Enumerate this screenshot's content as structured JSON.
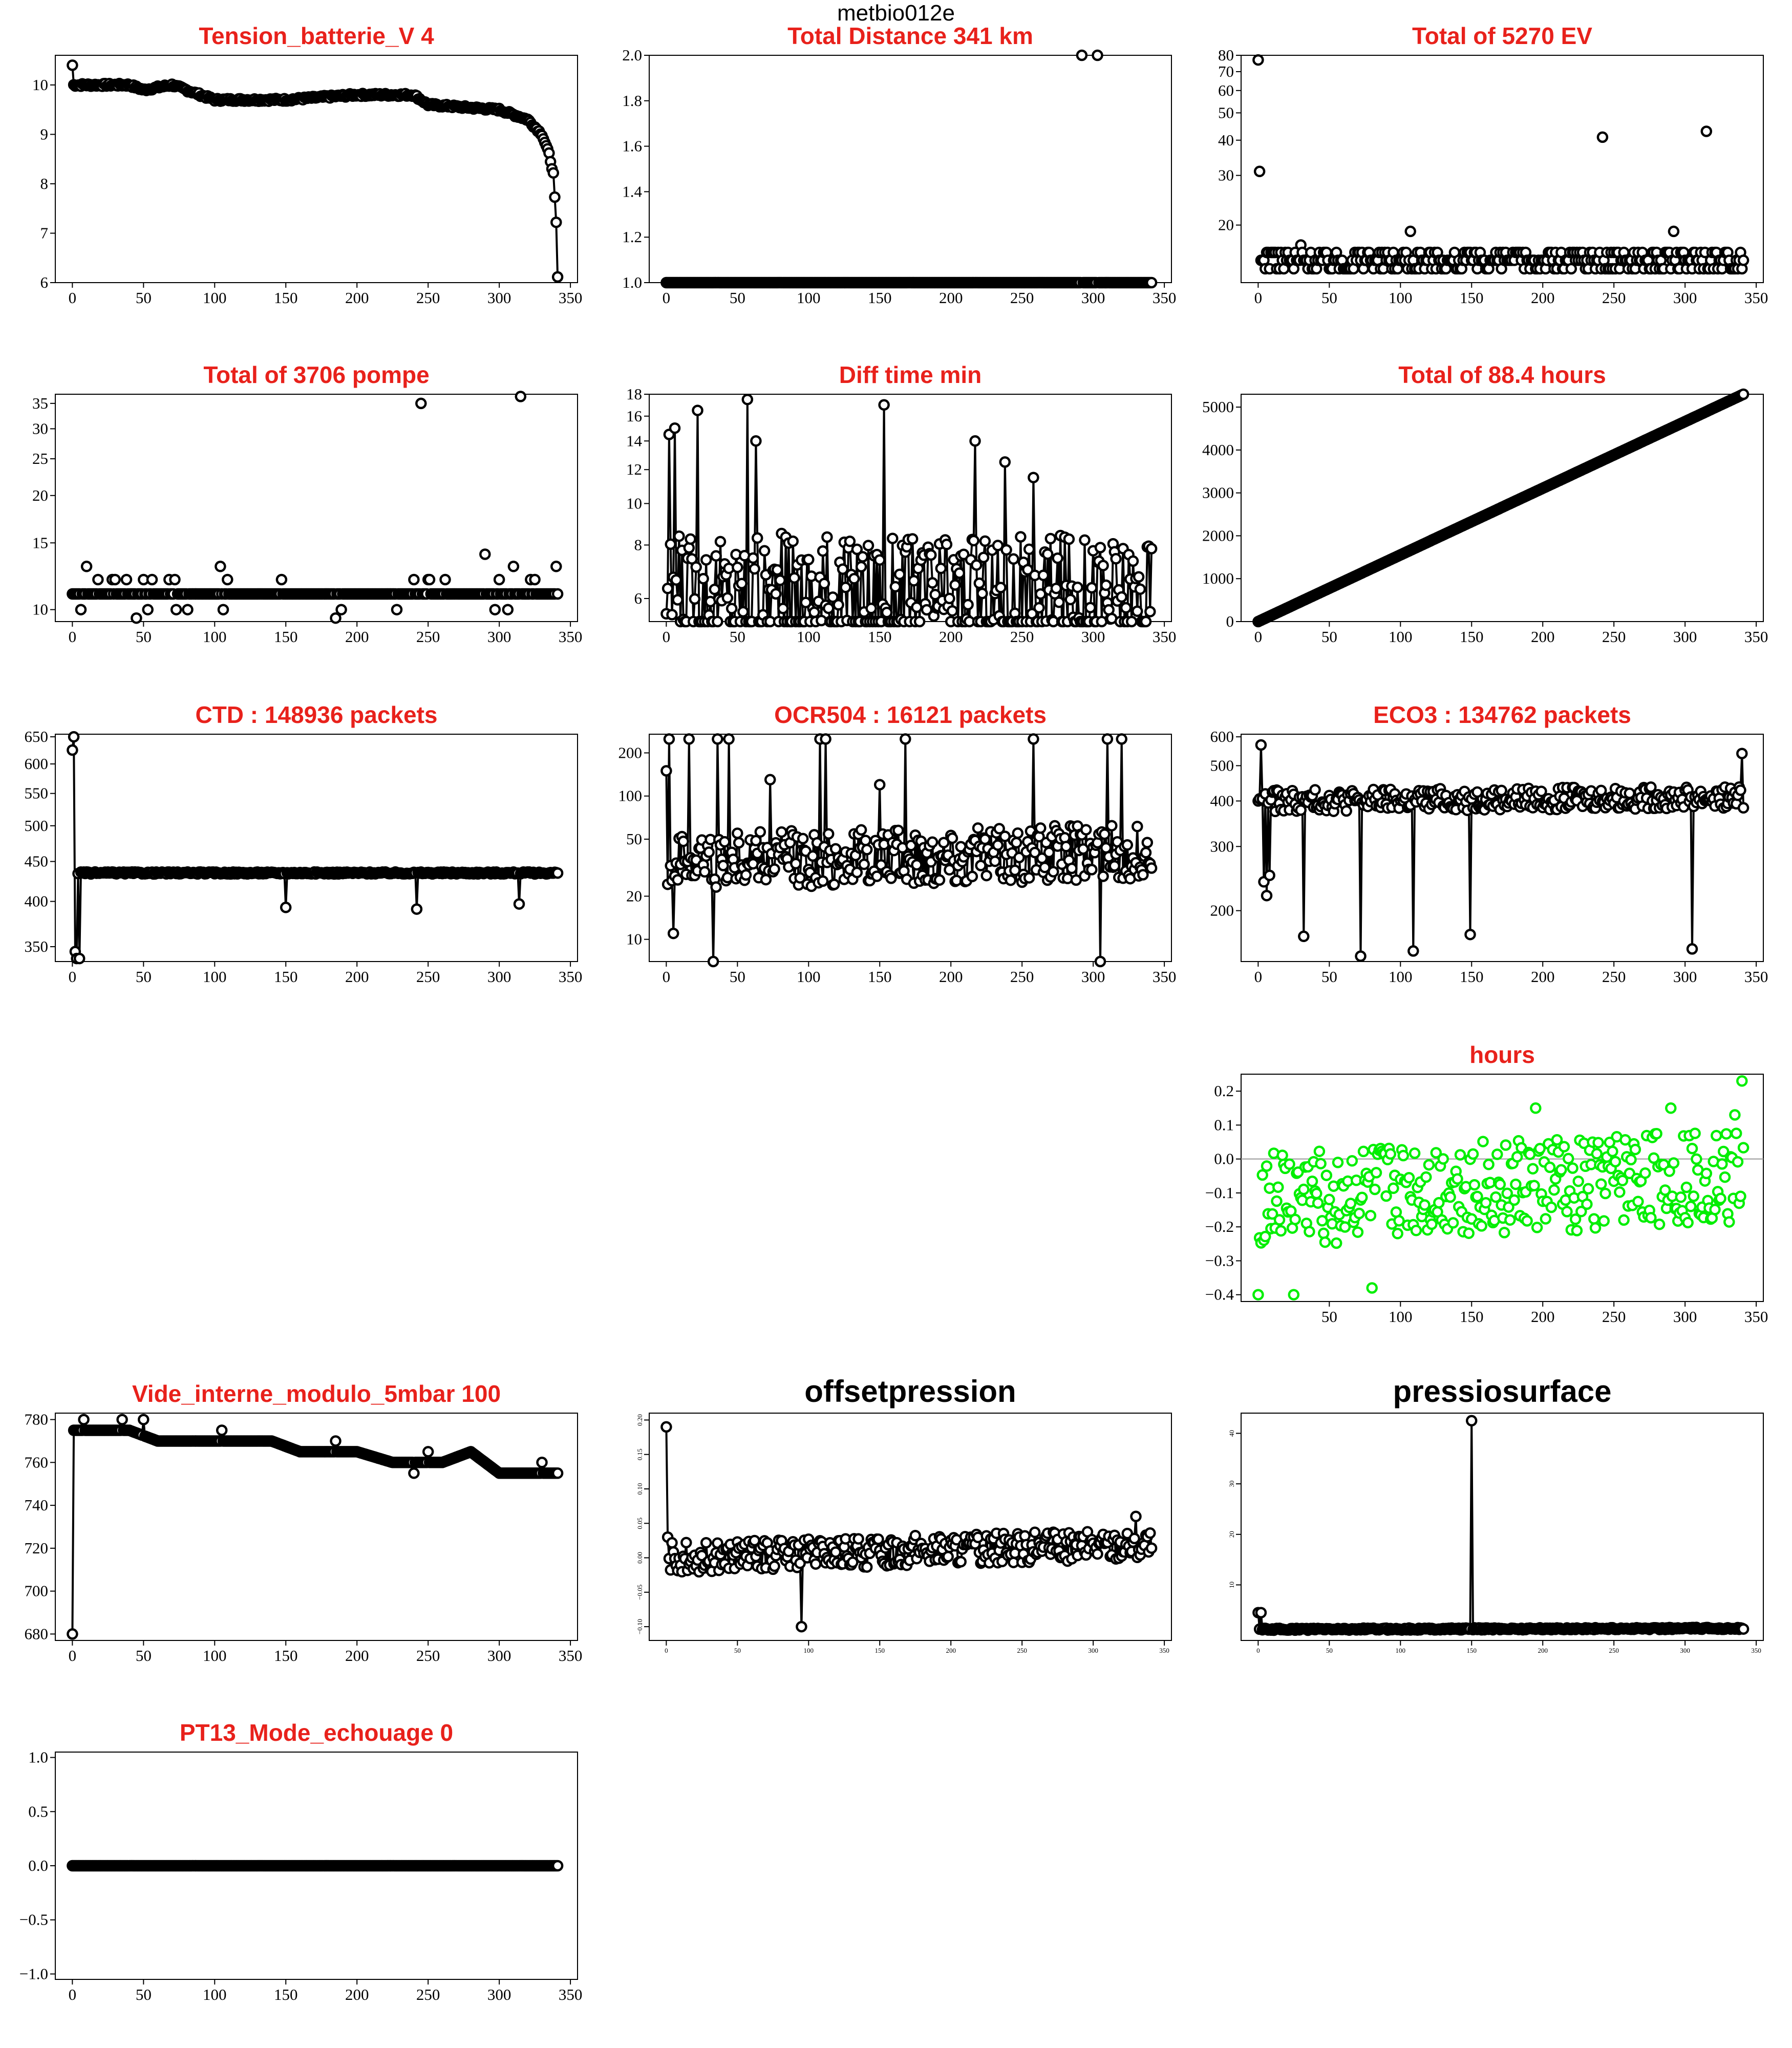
{
  "figure_title": "metbio012e",
  "colors": {
    "title": "#e8211b",
    "title_black": "#000000",
    "points": "#000000",
    "green": "#00ee00",
    "zero_line": "#999999"
  },
  "chart_data": [
    {
      "id": "tension",
      "type": "line",
      "title": "Tension_batterie_V 4",
      "title_color": "#e8211b",
      "xlim": [
        -12,
        355
      ],
      "ylim": [
        6,
        10.6
      ],
      "xticks": [
        0,
        50,
        100,
        150,
        200,
        250,
        300,
        350
      ],
      "yticks": [
        6,
        7,
        8,
        9,
        10
      ],
      "markers": true,
      "line": true,
      "approx_points": 341,
      "profile": [
        [
          0,
          10.4
        ],
        [
          1,
          10
        ],
        [
          40,
          10
        ],
        [
          50,
          9.9
        ],
        [
          70,
          10
        ],
        [
          80,
          9.9
        ],
        [
          100,
          9.7
        ],
        [
          150,
          9.7
        ],
        [
          200,
          9.8
        ],
        [
          240,
          9.8
        ],
        [
          250,
          9.6
        ],
        [
          300,
          9.5
        ],
        [
          320,
          9.3
        ],
        [
          330,
          9.0
        ],
        [
          335,
          8.6
        ],
        [
          338,
          8.2
        ],
        [
          340,
          7.2
        ],
        [
          341,
          6.1
        ]
      ]
    },
    {
      "id": "distance",
      "type": "line",
      "title": "Total Distance  341  km",
      "title_color": "#e8211b",
      "xlim": [
        -12,
        355
      ],
      "ylim": [
        1,
        2
      ],
      "xticks": [
        0,
        50,
        100,
        150,
        200,
        250,
        300,
        350
      ],
      "yticks": [
        1.0,
        1.2,
        1.4,
        1.6,
        1.8,
        2.0
      ],
      "markers": true,
      "line": false,
      "approx_points": 341,
      "profile": [
        [
          0,
          1
        ],
        [
          341,
          1
        ]
      ],
      "outliers": [
        [
          292,
          2
        ],
        [
          303,
          2
        ]
      ]
    },
    {
      "id": "ev",
      "type": "scatter",
      "title": "Total of  5270  EV",
      "title_color": "#e8211b",
      "xlim": [
        -12,
        355
      ],
      "ylim": [
        12.5,
        80
      ],
      "yscale": "log",
      "xticks": [
        0,
        50,
        100,
        150,
        200,
        250,
        300,
        350
      ],
      "yticks": [
        20,
        30,
        40,
        50,
        60,
        70,
        80
      ],
      "markers": true,
      "line": false,
      "approx_points": 341,
      "profile": [
        [
          0,
          15
        ],
        [
          341,
          15
        ]
      ],
      "outliers": [
        [
          0,
          77
        ],
        [
          1,
          31
        ],
        [
          10,
          16
        ],
        [
          30,
          17
        ],
        [
          107,
          19
        ],
        [
          242,
          41
        ],
        [
          292,
          19
        ],
        [
          315,
          43
        ]
      ]
    },
    {
      "id": "pompe",
      "type": "scatter",
      "title": "Total of  3706  pompe",
      "title_color": "#e8211b",
      "xlim": [
        -12,
        355
      ],
      "ylim": [
        9.3,
        37
      ],
      "yscale": "log",
      "xticks": [
        0,
        50,
        100,
        150,
        200,
        250,
        300,
        350
      ],
      "yticks": [
        10,
        15,
        20,
        25,
        30,
        35
      ],
      "markers": true,
      "line": false,
      "approx_points": 341,
      "profile": [
        [
          0,
          11
        ],
        [
          341,
          11
        ]
      ],
      "outliers": [
        [
          10,
          13
        ],
        [
          28,
          12
        ],
        [
          45,
          9.5
        ],
        [
          68,
          12
        ],
        [
          104,
          13
        ],
        [
          185,
          9.5
        ],
        [
          245,
          35
        ],
        [
          290,
          14
        ],
        [
          300,
          12
        ],
        [
          310,
          13
        ],
        [
          315,
          36.5
        ],
        [
          325,
          12
        ],
        [
          340,
          13
        ]
      ]
    },
    {
      "id": "diff",
      "type": "line",
      "title": "Diff time min",
      "title_color": "#e8211b",
      "xlim": [
        -12,
        355
      ],
      "ylim": [
        5.3,
        18
      ],
      "yscale": "log",
      "xticks": [
        0,
        50,
        100,
        150,
        200,
        250,
        300,
        350
      ],
      "yticks": [
        6,
        8,
        10,
        12,
        14,
        16,
        18
      ],
      "markers": true,
      "line": true,
      "approx_points": 341,
      "profile": [
        [
          0,
          6
        ],
        [
          341,
          6
        ]
      ],
      "outliers": [
        [
          2,
          14.5
        ],
        [
          4,
          5.5
        ],
        [
          6,
          15
        ],
        [
          22,
          16.5
        ],
        [
          57,
          17.5
        ],
        [
          63,
          14
        ],
        [
          153,
          17
        ],
        [
          217,
          14
        ],
        [
          238,
          12.5
        ],
        [
          258,
          11.5
        ]
      ]
    },
    {
      "id": "hours_total",
      "type": "line",
      "title": "Total of  88.4  hours",
      "title_color": "#e8211b",
      "xlim": [
        -12,
        355
      ],
      "ylim": [
        0,
        5300
      ],
      "xticks": [
        0,
        50,
        100,
        150,
        200,
        250,
        300,
        350
      ],
      "yticks": [
        0,
        1000,
        2000,
        3000,
        4000,
        5000
      ],
      "markers": true,
      "line": true,
      "approx_points": 341,
      "profile": [
        [
          0,
          0
        ],
        [
          341,
          5300
        ]
      ]
    },
    {
      "id": "ctd",
      "type": "line",
      "title": "CTD  : 148936  packets",
      "title_color": "#e8211b",
      "xlim": [
        -12,
        355
      ],
      "ylim": [
        335,
        655
      ],
      "yscale": "log",
      "xticks": [
        0,
        50,
        100,
        150,
        200,
        250,
        300,
        350
      ],
      "yticks": [
        350,
        400,
        450,
        500,
        550,
        600,
        650
      ],
      "markers": true,
      "line": true,
      "approx_points": 341,
      "profile": [
        [
          0,
          435
        ],
        [
          341,
          435
        ]
      ],
      "outliers": [
        [
          0,
          625
        ],
        [
          1,
          650
        ],
        [
          2,
          345
        ],
        [
          3,
          338
        ],
        [
          5,
          338
        ],
        [
          150,
          393
        ],
        [
          242,
          391
        ],
        [
          314,
          397
        ]
      ]
    },
    {
      "id": "ocr",
      "type": "line",
      "title": "OCR504  : 16121  packets",
      "title_color": "#e8211b",
      "xlim": [
        -12,
        355
      ],
      "ylim": [
        7,
        270
      ],
      "yscale": "log",
      "xticks": [
        0,
        50,
        100,
        150,
        200,
        250,
        300,
        350
      ],
      "yticks": [
        10,
        20,
        50,
        100,
        200
      ],
      "markers": true,
      "line": true,
      "approx_points": 341,
      "profile": [
        [
          0,
          35
        ],
        [
          300,
          40
        ],
        [
          341,
          40
        ]
      ],
      "outliers": [
        [
          0,
          150
        ],
        [
          2,
          250
        ],
        [
          5,
          11
        ],
        [
          16,
          250
        ],
        [
          33,
          7
        ],
        [
          36,
          250
        ],
        [
          44,
          250
        ],
        [
          73,
          130
        ],
        [
          108,
          250
        ],
        [
          112,
          250
        ],
        [
          150,
          120
        ],
        [
          168,
          250
        ],
        [
          258,
          250
        ],
        [
          305,
          7
        ],
        [
          310,
          250
        ],
        [
          320,
          250
        ]
      ]
    },
    {
      "id": "eco",
      "type": "line",
      "title": "ECO3  : 134762  packets",
      "title_color": "#e8211b",
      "xlim": [
        -12,
        355
      ],
      "ylim": [
        145,
        610
      ],
      "yscale": "log",
      "xticks": [
        0,
        50,
        100,
        150,
        200,
        250,
        300,
        350
      ],
      "yticks": [
        200,
        300,
        400,
        500,
        600
      ],
      "markers": true,
      "line": true,
      "approx_points": 341,
      "profile": [
        [
          0,
          400
        ],
        [
          341,
          410
        ]
      ],
      "outliers": [
        [
          0,
          400
        ],
        [
          2,
          570
        ],
        [
          4,
          240
        ],
        [
          6,
          220
        ],
        [
          8,
          250
        ],
        [
          32,
          170
        ],
        [
          72,
          150
        ],
        [
          109,
          155
        ],
        [
          149,
          172
        ],
        [
          305,
          157
        ],
        [
          340,
          540
        ]
      ]
    },
    {
      "id": "hours_resid",
      "type": "scatter",
      "title": "hours",
      "title_color": "#e8211b",
      "xlim": [
        -12,
        355
      ],
      "ylim": [
        -0.42,
        0.25
      ],
      "xticks": [
        50,
        100,
        150,
        200,
        250,
        300,
        350
      ],
      "yticks": [
        -0.4,
        -0.3,
        -0.2,
        -0.1,
        0.0,
        0.1,
        0.2
      ],
      "markers": true,
      "line": false,
      "marker_color": "#00ee00",
      "zero_line": true,
      "approx_points": 341,
      "profile": [
        [
          0,
          -0.12
        ],
        [
          341,
          -0.05
        ]
      ],
      "outliers": [
        [
          0,
          -0.4
        ],
        [
          25,
          -0.4
        ],
        [
          80,
          -0.38
        ],
        [
          340,
          0.23
        ],
        [
          335,
          0.13
        ],
        [
          290,
          0.15
        ],
        [
          195,
          0.15
        ]
      ]
    },
    {
      "id": "vide",
      "type": "line",
      "title": "Vide_interne_modulo_5mbar 100",
      "title_color": "#e8211b",
      "xlim": [
        -12,
        355
      ],
      "ylim": [
        677,
        783
      ],
      "xticks": [
        0,
        50,
        100,
        150,
        200,
        250,
        300,
        350
      ],
      "yticks": [
        680,
        700,
        720,
        740,
        760,
        780
      ],
      "markers": true,
      "line": true,
      "approx_points": 341,
      "profile": [
        [
          0,
          680
        ],
        [
          1,
          775
        ],
        [
          40,
          775
        ],
        [
          60,
          770
        ],
        [
          110,
          770
        ],
        [
          140,
          770
        ],
        [
          160,
          765
        ],
        [
          200,
          765
        ],
        [
          225,
          760
        ],
        [
          260,
          760
        ],
        [
          280,
          765
        ],
        [
          300,
          755
        ],
        [
          340,
          755
        ]
      ],
      "outliers": [
        [
          0,
          680
        ],
        [
          8,
          780
        ],
        [
          35,
          780
        ],
        [
          50,
          780
        ],
        [
          105,
          775
        ],
        [
          185,
          770
        ],
        [
          240,
          755
        ],
        [
          250,
          765
        ],
        [
          330,
          760
        ]
      ]
    },
    {
      "id": "offset",
      "type": "line",
      "title": "offsetpression",
      "title_color": "#000000",
      "xlim": [
        -12,
        355
      ],
      "ylim": [
        -0.12,
        0.21
      ],
      "xticks": [
        0,
        50,
        100,
        150,
        200,
        250,
        300,
        350
      ],
      "yticks": [
        -0.1,
        -0.05,
        0.0,
        0.05,
        0.1,
        0.15,
        0.2
      ],
      "tick_font_small": true,
      "markers": true,
      "line": true,
      "approx_points": 341,
      "profile": [
        [
          0,
          0
        ],
        [
          341,
          0.02
        ]
      ],
      "outliers": [
        [
          0,
          0.19
        ],
        [
          1,
          0.03
        ],
        [
          95,
          -0.1
        ],
        [
          330,
          0.06
        ]
      ]
    },
    {
      "id": "pressio",
      "type": "line",
      "title": "pressiosurface",
      "title_color": "#000000",
      "xlim": [
        -12,
        355
      ],
      "ylim": [
        -1,
        44
      ],
      "xticks": [
        0,
        50,
        100,
        150,
        200,
        250,
        300,
        350
      ],
      "yticks": [
        10,
        20,
        30,
        40
      ],
      "tick_font_small": true,
      "markers": true,
      "line": true,
      "approx_points": 341,
      "profile": [
        [
          0,
          1.2
        ],
        [
          341,
          1.4
        ]
      ],
      "outliers": [
        [
          0,
          4.5
        ],
        [
          2,
          4.5
        ],
        [
          150,
          42.5
        ]
      ]
    },
    {
      "id": "pt13",
      "type": "line",
      "title": "PT13_Mode_echouage  0",
      "title_color": "#e8211b",
      "xlim": [
        -12,
        355
      ],
      "ylim": [
        -1.05,
        1.05
      ],
      "xticks": [
        0,
        50,
        100,
        150,
        200,
        250,
        300,
        350
      ],
      "yticks": [
        -1.0,
        -0.5,
        0.0,
        0.5,
        1.0
      ],
      "markers": true,
      "line": true,
      "approx_points": 341,
      "profile": [
        [
          0,
          0
        ],
        [
          341,
          0
        ]
      ]
    }
  ]
}
